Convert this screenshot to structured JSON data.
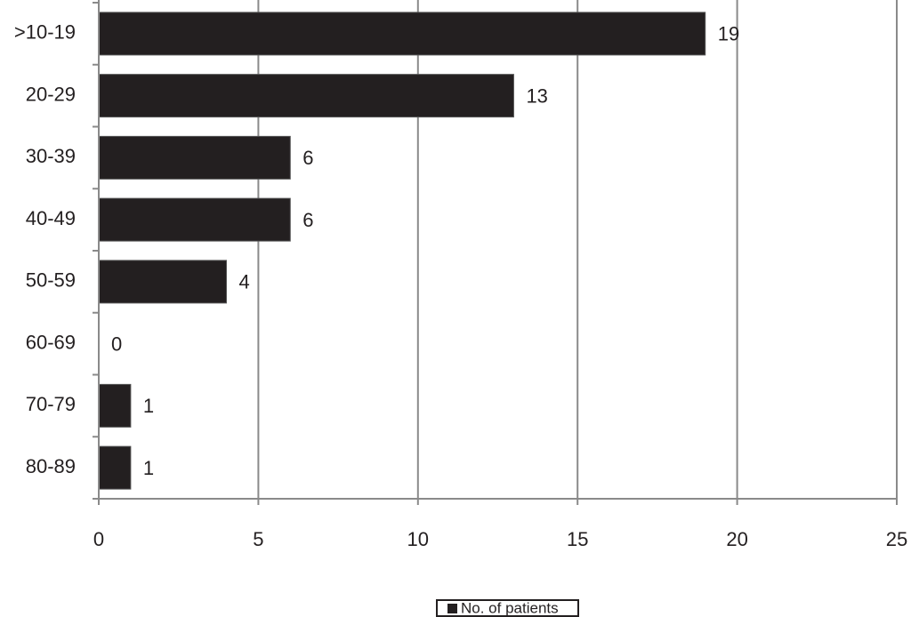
{
  "chart_data": {
    "type": "bar",
    "orientation": "horizontal",
    "categories": [
      ">10-19",
      "20-29",
      "30-39",
      "40-49",
      "50-59",
      "60-69",
      "70-79",
      "80-89"
    ],
    "series": [
      {
        "name": "No. of patients",
        "color": "#231f20",
        "values": [
          19,
          13,
          6,
          6,
          4,
          0,
          1,
          1
        ]
      }
    ],
    "xlim": [
      0,
      25
    ],
    "xticks": [
      0,
      5,
      10,
      15,
      20,
      25
    ],
    "grid": true,
    "legend": "bottom"
  }
}
